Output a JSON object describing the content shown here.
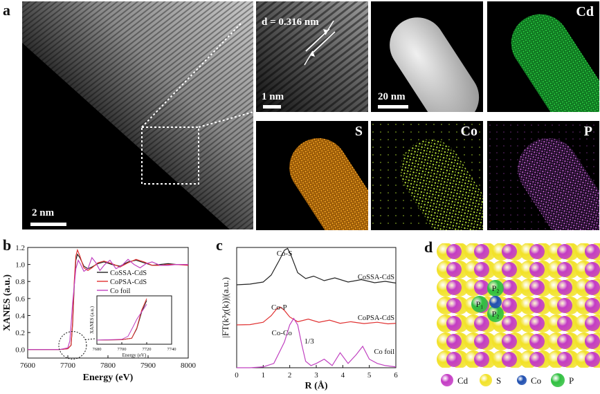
{
  "panels": {
    "a": {
      "letter": "a",
      "main_scale": "2 nm",
      "hr_d_spacing": "d = 0.316 nm",
      "hr_scale": "1 nm",
      "haadf_scale": "20 nm",
      "maps": {
        "cd": "Cd",
        "s": "S",
        "co": "Co",
        "p": "P"
      },
      "map_colors": {
        "cd": "#1fbf3a",
        "s": "#f0a020",
        "co": "#b8e038",
        "p": "#c060d0"
      }
    },
    "b": {
      "letter": "b"
    },
    "c": {
      "letter": "c"
    },
    "d": {
      "letter": "d",
      "legend": [
        {
          "label": "Cd",
          "color": "#c43cc4"
        },
        {
          "label": "S",
          "color": "#f2e22a"
        },
        {
          "label": "Co",
          "color": "#1f4fb0"
        },
        {
          "label": "P",
          "color": "#30c040"
        }
      ],
      "site_labels": [
        "P₂",
        "P₁",
        "P₂"
      ]
    }
  },
  "chart_data": [
    {
      "type": "line",
      "panel": "b",
      "xlabel": "Energy (eV)",
      "ylabel": "XANES (a.u.)",
      "xlim": [
        7600,
        8000
      ],
      "ylim": [
        -0.1,
        1.2
      ],
      "xticks": [
        "7600",
        "7700",
        "7800",
        "7900",
        "8000"
      ],
      "yticks": [
        "0.0",
        "0.2",
        "0.4",
        "0.6",
        "0.8",
        "1.0",
        "1.2"
      ],
      "legend_position": "right",
      "series": [
        {
          "name": "CoSSA-CdS",
          "color": "#222222",
          "x": [
            7600,
            7680,
            7700,
            7708,
            7712,
            7716,
            7720,
            7724,
            7730,
            7740,
            7750,
            7760,
            7775,
            7790,
            7810,
            7830,
            7850,
            7870,
            7890,
            7910,
            7930,
            7950,
            7970,
            8000
          ],
          "y": [
            0.0,
            0.0,
            0.01,
            0.05,
            0.3,
            0.75,
            1.05,
            1.12,
            1.08,
            0.98,
            0.95,
            0.97,
            1.01,
            1.03,
            1.0,
            0.98,
            1.03,
            1.05,
            1.02,
            0.99,
            1.0,
            1.01,
            1.0,
            1.0
          ]
        },
        {
          "name": "CoPSA-CdS",
          "color": "#e03030",
          "x": [
            7600,
            7680,
            7700,
            7708,
            7712,
            7716,
            7720,
            7724,
            7730,
            7740,
            7750,
            7760,
            7775,
            7790,
            7810,
            7830,
            7850,
            7870,
            7890,
            7910,
            7930,
            7950,
            7970,
            8000
          ],
          "y": [
            0.0,
            0.0,
            0.01,
            0.05,
            0.32,
            0.8,
            1.1,
            1.17,
            1.1,
            0.96,
            0.93,
            0.96,
            1.02,
            1.04,
            1.01,
            0.97,
            1.02,
            1.06,
            1.03,
            0.99,
            0.99,
            1.0,
            1.0,
            0.99
          ]
        },
        {
          "name": "Co foil",
          "color": "#c040c0",
          "x": [
            7600,
            7680,
            7700,
            7705,
            7709,
            7712,
            7716,
            7720,
            7726,
            7732,
            7740,
            7750,
            7760,
            7770,
            7780,
            7792,
            7805,
            7820,
            7835,
            7850,
            7865,
            7880,
            7895,
            7910,
            7930,
            7950,
            7970,
            8000
          ],
          "y": [
            0.0,
            0.0,
            0.02,
            0.1,
            0.35,
            0.55,
            0.75,
            0.95,
            1.05,
            1.0,
            0.92,
            0.95,
            1.08,
            1.02,
            0.93,
            1.0,
            1.05,
            0.95,
            0.99,
            1.06,
            1.0,
            0.96,
            1.01,
            1.03,
            0.99,
            0.99,
            1.0,
            1.0
          ]
        }
      ],
      "inset": {
        "xlabel": "Energy (eV)",
        "ylabel": "XANES (a.u.)",
        "xlim": [
          7680,
          7740
        ],
        "xticks": [
          "7680",
          "7700",
          "7720",
          "7740"
        ]
      }
    },
    {
      "type": "line",
      "panel": "c",
      "xlabel": "R (Å)",
      "ylabel": "|FT(k³χ(k))|(a.u.)",
      "xlim": [
        0,
        6
      ],
      "xticks": [
        "0",
        "1",
        "2",
        "3",
        "4",
        "5",
        "6"
      ],
      "series": [
        {
          "name": "CoSSA-CdS",
          "color": "#222222",
          "x": [
            0,
            0.5,
            1.0,
            1.3,
            1.6,
            1.8,
            1.92,
            2.05,
            2.3,
            2.6,
            2.9,
            3.3,
            3.7,
            4.2,
            4.7,
            5.2,
            5.6,
            6.0
          ],
          "y": [
            0.0,
            0.02,
            0.08,
            0.28,
            0.7,
            1.0,
            1.05,
            0.85,
            0.35,
            0.18,
            0.25,
            0.12,
            0.2,
            0.08,
            0.15,
            0.06,
            0.1,
            0.05
          ]
        },
        {
          "name": "CoPSA-CdS",
          "color": "#e03030",
          "x": [
            0,
            0.5,
            1.0,
            1.3,
            1.5,
            1.65,
            1.8,
            2.0,
            2.3,
            2.7,
            3.1,
            3.5,
            3.9,
            4.3,
            4.8,
            5.3,
            5.7,
            6.0
          ],
          "y": [
            0.0,
            0.01,
            0.1,
            0.35,
            0.6,
            0.68,
            0.55,
            0.3,
            0.12,
            0.22,
            0.1,
            0.18,
            0.06,
            0.12,
            0.05,
            0.1,
            0.04,
            0.06
          ]
        },
        {
          "name": "Co foil",
          "color": "#c040c0",
          "x": [
            0,
            0.5,
            1.0,
            1.4,
            1.8,
            2.0,
            2.15,
            2.3,
            2.45,
            2.6,
            2.8,
            3.0,
            3.3,
            3.6,
            3.9,
            4.2,
            4.5,
            4.75,
            5.0,
            5.3,
            5.6,
            6.0
          ],
          "y": [
            0.0,
            0.0,
            0.02,
            0.1,
            0.6,
            1.0,
            1.15,
            1.0,
            0.55,
            0.15,
            0.05,
            0.1,
            0.2,
            0.05,
            0.35,
            0.1,
            0.3,
            0.5,
            0.2,
            0.1,
            0.05,
            0.02
          ]
        }
      ],
      "annotations": [
        "Co-S",
        "Co-P",
        "Co-Co",
        "1/3",
        "CoSSA-CdS",
        "CoPSA-CdS",
        "Co foil"
      ]
    }
  ]
}
